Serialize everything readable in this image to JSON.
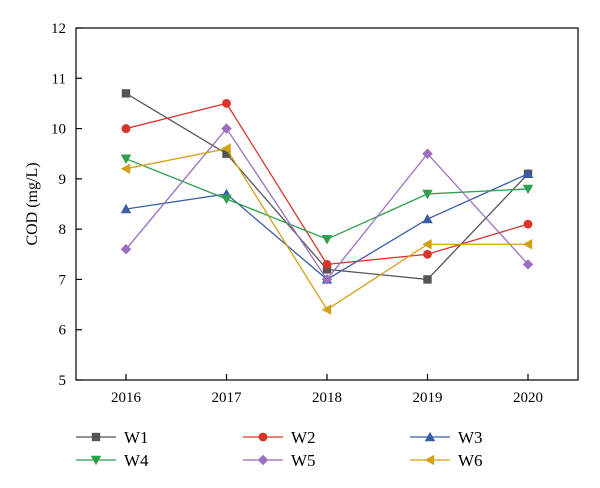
{
  "chart_data": {
    "type": "line",
    "title": "",
    "xlabel": "",
    "ylabel": "COD (mg/L)",
    "x": [
      "2016",
      "2017",
      "2018",
      "2019",
      "2020"
    ],
    "yticks": [
      "5",
      "6",
      "7",
      "8",
      "9",
      "10",
      "11",
      "12"
    ],
    "ylim": [
      5,
      12
    ],
    "grid": false,
    "legend_position": "bottom",
    "series": [
      {
        "name": "W1",
        "color": "#555555",
        "marker": "square",
        "values": [
          10.7,
          9.5,
          7.2,
          7.0,
          9.1
        ]
      },
      {
        "name": "W2",
        "color": "#d9342b",
        "marker": "circle",
        "values": [
          10.0,
          10.5,
          7.3,
          7.5,
          8.1
        ]
      },
      {
        "name": "W3",
        "color": "#3a5da8",
        "marker": "triangle-up",
        "values": [
          8.4,
          8.7,
          7.0,
          8.2,
          9.1
        ]
      },
      {
        "name": "W4",
        "color": "#2e9e4f",
        "marker": "triangle-down",
        "values": [
          9.4,
          8.6,
          7.8,
          8.7,
          8.8
        ]
      },
      {
        "name": "W5",
        "color": "#9b6fc0",
        "marker": "diamond",
        "values": [
          7.6,
          10.0,
          7.0,
          9.5,
          7.3
        ]
      },
      {
        "name": "W6",
        "color": "#d4a017",
        "marker": "triangle-left",
        "values": [
          9.2,
          9.6,
          6.4,
          7.7,
          7.7
        ]
      }
    ]
  }
}
